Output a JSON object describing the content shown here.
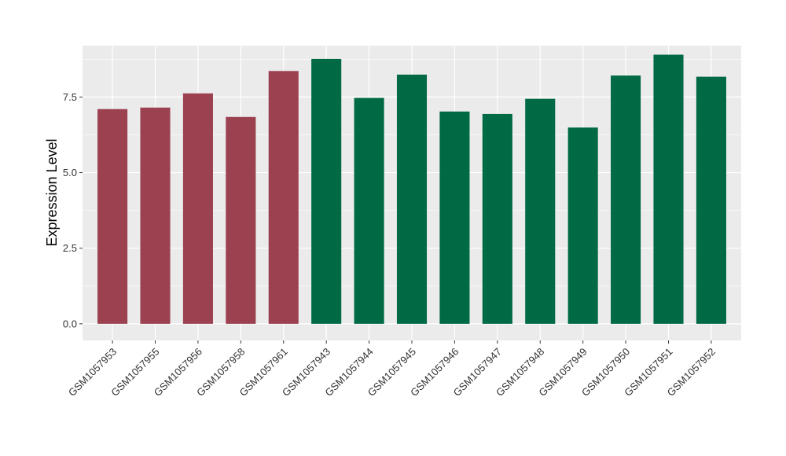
{
  "chart_data": {
    "type": "bar",
    "title": "",
    "xlabel": "",
    "ylabel": "Expression Level",
    "ylim": [
      -0.55,
      9.2
    ],
    "yticks": [
      0.0,
      2.5,
      5.0,
      7.5
    ],
    "ytick_labels": [
      "0.0",
      "2.5",
      "5.0",
      "7.5"
    ],
    "grid": true,
    "legend": "none",
    "panel_background": "#EBEBEB",
    "grid_color": "#FFFFFF",
    "categories": [
      "GSM1057953",
      "GSM1057955",
      "GSM1057956",
      "GSM1057958",
      "GSM1057961",
      "GSM1057943",
      "GSM1057944",
      "GSM1057945",
      "GSM1057946",
      "GSM1057947",
      "GSM1057948",
      "GSM1057949",
      "GSM1057950",
      "GSM1057951",
      "GSM1057952"
    ],
    "values": [
      7.1,
      7.15,
      7.62,
      6.84,
      8.36,
      8.76,
      7.47,
      8.24,
      7.02,
      6.94,
      7.44,
      6.49,
      8.21,
      8.9,
      8.17
    ],
    "colors": [
      "#9B4150",
      "#9B4150",
      "#9B4150",
      "#9B4150",
      "#9B4150",
      "#006A45",
      "#006A45",
      "#006A45",
      "#006A45",
      "#006A45",
      "#006A45",
      "#006A45",
      "#006A45",
      "#006A45",
      "#006A45"
    ]
  }
}
